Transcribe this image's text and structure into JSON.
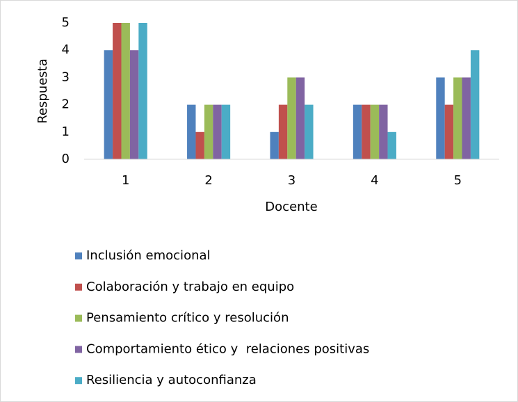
{
  "chart_data": {
    "type": "bar",
    "categories": [
      "1",
      "2",
      "3",
      "4",
      "5"
    ],
    "series": [
      {
        "name": "Inclusión emocional",
        "color": "#4f81bd",
        "values": [
          4,
          2,
          1,
          2,
          3
        ]
      },
      {
        "name": "Colaboración y trabajo en equipo",
        "color": "#c0504d",
        "values": [
          5,
          1,
          2,
          2,
          2
        ]
      },
      {
        "name": "Pensamiento crítico y resolución",
        "color": "#9bbb59",
        "values": [
          5,
          2,
          3,
          2,
          3
        ]
      },
      {
        "name": "Comportamiento ético y  relaciones positivas",
        "color": "#8064a2",
        "values": [
          4,
          2,
          3,
          2,
          3
        ]
      },
      {
        "name": "Resiliencia y autoconfianza",
        "color": "#4bacc6",
        "values": [
          5,
          2,
          2,
          1,
          4
        ]
      }
    ],
    "x_label": "Docente",
    "y_label": "Respuesta",
    "ylim": [
      0,
      5
    ],
    "yticks": [
      0,
      1,
      2,
      3,
      4,
      5
    ],
    "grid": false,
    "legend": "bottom"
  }
}
